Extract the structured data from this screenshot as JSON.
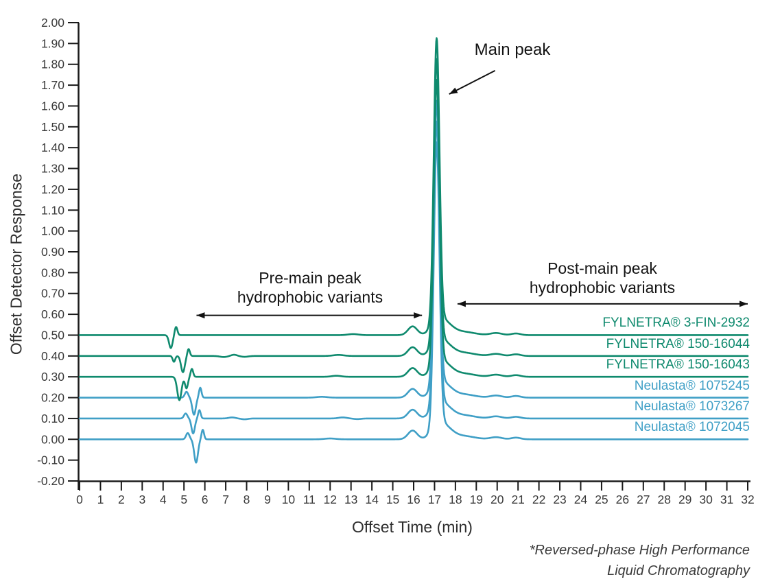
{
  "figure": {
    "ylabel": "Offset Detector Response",
    "xlabel": "Offset Time (min)",
    "footnote_line1": "*Reversed-phase High Performance",
    "footnote_line2": "Liquid Chromatography"
  },
  "annotations": {
    "main_peak": {
      "text": "Main peak"
    },
    "pre": {
      "line1": "Pre-main peak",
      "line2": "hydrophobic variants"
    },
    "post": {
      "line1": "Post-main peak",
      "line2": "hydrophobic variants"
    }
  },
  "colors": {
    "green": "#0f8a6e",
    "blue": "#3f9fc6",
    "axis": "#1a1a1a",
    "tick_text": "#3a3a3a",
    "arrow": "#111111"
  },
  "chart_data": {
    "type": "line",
    "title": "",
    "xlabel": "Offset Time (min)",
    "ylabel": "Offset Detector Response",
    "xlim": [
      0,
      32
    ],
    "ylim": [
      -0.2,
      2.0
    ],
    "grid": false,
    "legend_position": "inline-right-above-each-trace",
    "x_ticks": [
      0,
      1,
      2,
      3,
      4,
      5,
      6,
      7,
      8,
      9,
      10,
      11,
      12,
      13,
      14,
      15,
      16,
      17,
      18,
      19,
      20,
      21,
      22,
      23,
      24,
      25,
      26,
      27,
      28,
      29,
      30,
      31,
      32
    ],
    "y_tick_labels": [
      "2.00",
      "1.90",
      "1.80",
      "1.70",
      "1.60",
      "1.50",
      "1.40",
      "1.30",
      "1.20",
      "1.10",
      "1.00",
      "0.90",
      "0.80",
      "0.70",
      "0.60",
      "0.50",
      "0.40",
      "0.30",
      "0.20",
      "0.10",
      "0.00",
      "-0.10",
      "-0.20"
    ],
    "main_peak_time_min": 17.1,
    "pre_peak_bump_time_min": 15.95,
    "peak_height_above_baseline": 1.43,
    "shared_shape_gaussians": [
      {
        "c": 15.95,
        "a": 0.042,
        "s": 0.22
      },
      {
        "c": 17.1,
        "a": 1.345,
        "s": 0.135
      },
      {
        "c": 17.12,
        "a": 0.06,
        "s": 0.3
      },
      {
        "c": 17.55,
        "a": 0.045,
        "s": 0.35
      },
      {
        "c": 18.35,
        "a": 0.016,
        "s": 0.55
      },
      {
        "c": 19.95,
        "a": 0.01,
        "s": 0.28
      },
      {
        "c": 20.9,
        "a": 0.008,
        "s": 0.22
      }
    ],
    "series": [
      {
        "name": "FYLNETRA® 3-FIN-2932",
        "color_key": "green",
        "offset": 0.5,
        "features": [
          {
            "c": 4.37,
            "a": -0.062,
            "s": 0.085
          },
          {
            "c": 4.62,
            "a": 0.04,
            "s": 0.065
          },
          {
            "c": 13.1,
            "a": 0.005,
            "s": 0.25
          }
        ]
      },
      {
        "name": "FYLNETRA® 150-16044",
        "color_key": "green",
        "offset": 0.4,
        "features": [
          {
            "c": 4.52,
            "a": -0.028,
            "s": 0.06
          },
          {
            "c": 4.95,
            "a": -0.078,
            "s": 0.09
          },
          {
            "c": 5.22,
            "a": 0.034,
            "s": 0.06
          },
          {
            "c": 6.9,
            "a": -0.005,
            "s": 0.18
          },
          {
            "c": 7.4,
            "a": 0.006,
            "s": 0.14
          },
          {
            "c": 7.9,
            "a": -0.004,
            "s": 0.18
          },
          {
            "c": 12.4,
            "a": 0.005,
            "s": 0.25
          }
        ]
      },
      {
        "name": "FYLNETRA® 150-16043",
        "color_key": "green",
        "offset": 0.3,
        "features": [
          {
            "c": 4.78,
            "a": -0.112,
            "s": 0.1
          },
          {
            "c": 5.12,
            "a": -0.055,
            "s": 0.07
          },
          {
            "c": 5.38,
            "a": 0.038,
            "s": 0.06
          },
          {
            "c": 12.3,
            "a": 0.005,
            "s": 0.22
          }
        ]
      },
      {
        "name": "Neulasta® 1075245",
        "color_key": "blue",
        "offset": 0.2,
        "features": [
          {
            "c": 5.12,
            "a": 0.028,
            "s": 0.08
          },
          {
            "c": 5.48,
            "a": -0.082,
            "s": 0.085
          },
          {
            "c": 5.78,
            "a": 0.048,
            "s": 0.06
          },
          {
            "c": 11.6,
            "a": 0.004,
            "s": 0.25
          }
        ]
      },
      {
        "name": "Neulasta® 1073267",
        "color_key": "blue",
        "offset": 0.1,
        "features": [
          {
            "c": 5.08,
            "a": 0.024,
            "s": 0.08
          },
          {
            "c": 5.44,
            "a": -0.072,
            "s": 0.08
          },
          {
            "c": 5.74,
            "a": 0.04,
            "s": 0.06
          },
          {
            "c": 7.3,
            "a": 0.005,
            "s": 0.16
          },
          {
            "c": 7.9,
            "a": -0.004,
            "s": 0.16
          },
          {
            "c": 12.6,
            "a": 0.005,
            "s": 0.2
          },
          {
            "c": 13.3,
            "a": -0.003,
            "s": 0.18
          }
        ]
      },
      {
        "name": "Neulasta® 1072045",
        "color_key": "blue",
        "offset": 0.0,
        "features": [
          {
            "c": 5.18,
            "a": 0.03,
            "s": 0.08
          },
          {
            "c": 5.58,
            "a": -0.112,
            "s": 0.09
          },
          {
            "c": 5.9,
            "a": 0.046,
            "s": 0.06
          },
          {
            "c": 12.0,
            "a": 0.004,
            "s": 0.25
          }
        ]
      }
    ],
    "annotation_geometry": {
      "main_peak_arrow": {
        "tail": [
          19.9,
          1.77
        ],
        "head": [
          17.7,
          1.657
        ]
      },
      "pre_span_arrow": {
        "x1": 5.6,
        "x2": 16.4,
        "y": 0.595
      },
      "post_span_arrow": {
        "x1": 18.1,
        "x2": 32.0,
        "y": 0.65
      }
    }
  }
}
